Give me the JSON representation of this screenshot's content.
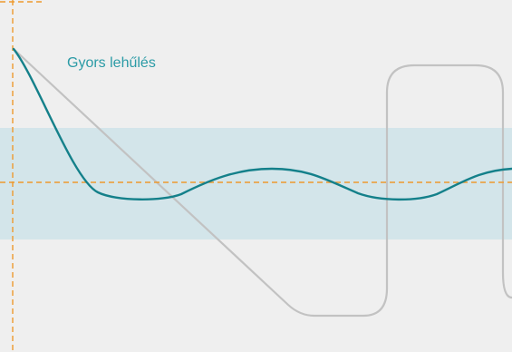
{
  "diagram": {
    "curve_label": "Gyors lehűlés",
    "colors": {
      "background": "#efefef",
      "band": "#d3e5ea",
      "response_curve": "#14808a",
      "reference_curve": "#c2c2c2",
      "guide_lines": "#ee9a2e",
      "label_text": "#2b9ba6"
    }
  }
}
